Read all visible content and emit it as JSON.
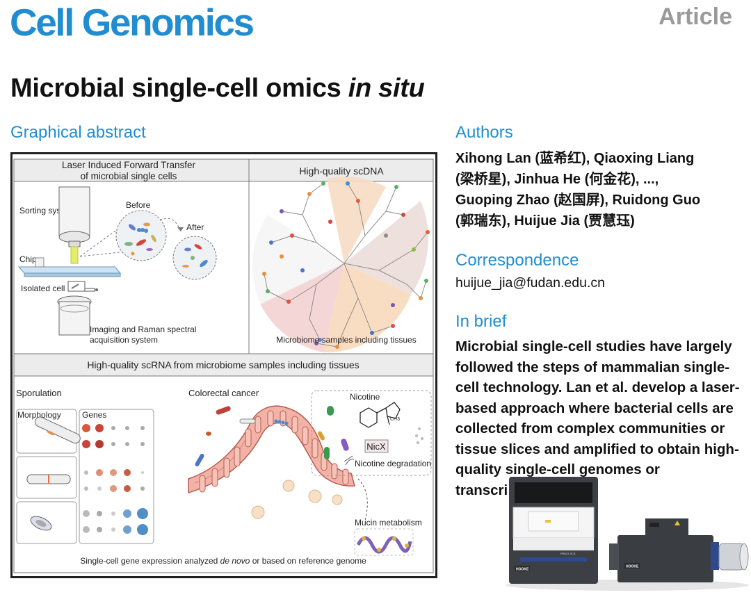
{
  "journal": "Cell Genomics",
  "article_type": "Article",
  "title": {
    "main": "Microbial single-cell omics ",
    "italic": "in situ"
  },
  "graphical_abstract": {
    "heading": "Graphical abstract",
    "panel_a": {
      "title_line1": "Laser Induced Forward Transfer",
      "title_line2": "of microbial single cells"
    },
    "panel_b": {
      "title": "High-quality scDNA",
      "caption": "Microbiome samples including tissues"
    },
    "labels": {
      "sorting": "Sorting system",
      "before": "Before",
      "after": "After",
      "chip": "Chip",
      "isolated": "Isolated cell",
      "imaging_line1": "Imaging and Raman spectral",
      "imaging_line2": "acquisition system"
    },
    "panel_c": {
      "title": "High-quality scRNA from microbiome samples including tissues",
      "sporulation": "Sporulation",
      "morphology": "Morphology",
      "genes": "Genes",
      "colorectal": "Colorectal cancer",
      "nicotine": "Nicotine",
      "ch3": "CH3",
      "nicx": "NicX",
      "nicotine_degradation": "Nicotine degradation",
      "mucin": "Mucin metabolism",
      "footer_pre": "Single-cell gene expression analyzed ",
      "footer_italic": "de novo",
      "footer_post": " or based on reference genome"
    },
    "gene_dot_colors": [
      [
        "#d9563f",
        "#c8453a",
        "#aaaaaa",
        "#aaaaaa",
        "#aaaaaa"
      ],
      [
        "#c8453a",
        "#b53a33",
        "#aaaaaa",
        "#aaaaaa",
        "#aaaaaa"
      ],
      [
        "#bbbbbb",
        "#e08b72",
        "#e3987e",
        "#c95a46",
        "#cccccc"
      ],
      [
        "#bbbbbb",
        "#cccccc",
        "#e3987e",
        "#c95a46",
        "#aaaaaa"
      ],
      [
        "#bbbbbb",
        "#aaaaaa",
        "#cccccc",
        "#6fa0cf",
        "#4f8fc8"
      ],
      [
        "#bbbbbb",
        "#aaaaaa",
        "#cccccc",
        "#6fa0cf",
        "#4f8fc8"
      ]
    ],
    "gene_dot_sizes": [
      [
        6,
        6,
        3,
        3,
        3
      ],
      [
        6,
        6,
        3,
        3,
        3
      ],
      [
        3,
        5,
        5,
        5,
        2
      ],
      [
        3,
        3,
        5,
        5,
        3
      ],
      [
        5,
        4,
        3,
        6,
        8
      ],
      [
        5,
        4,
        3,
        6,
        8
      ]
    ]
  },
  "authors": {
    "heading": "Authors",
    "line1": "Xihong Lan (蓝希红), Qiaoxing Liang",
    "line2": "(梁桥星), Jinhua He (何金花), ...,",
    "line3": "Guoping Zhao (赵国屏), Ruidong Guo",
    "line4": "(郭瑞东), Huijue Jia (贾慧珏)"
  },
  "correspondence": {
    "heading": "Correspondence",
    "email": "huijue_jia@fudan.edu.cn"
  },
  "in_brief": {
    "heading": "In brief",
    "line1": "Microbial single-cell studies have largely",
    "line2": "followed the steps of mammalian single-",
    "line3": "cell technology. Lan et al. develop a laser-",
    "line4": "based approach where bacterial cells are",
    "line5": "collected from complex communities or",
    "line6": "tissue slices and amplified to obtain high-",
    "line7": "quality single-cell genomes or",
    "line8": "transcri"
  },
  "instrument": {
    "brand_left": "HOOKE",
    "model": "PRECI SCS",
    "brand_right": "HOOKE"
  },
  "colors": {
    "accent": "#1f8dd0",
    "article_gray": "#9a9a9a"
  }
}
